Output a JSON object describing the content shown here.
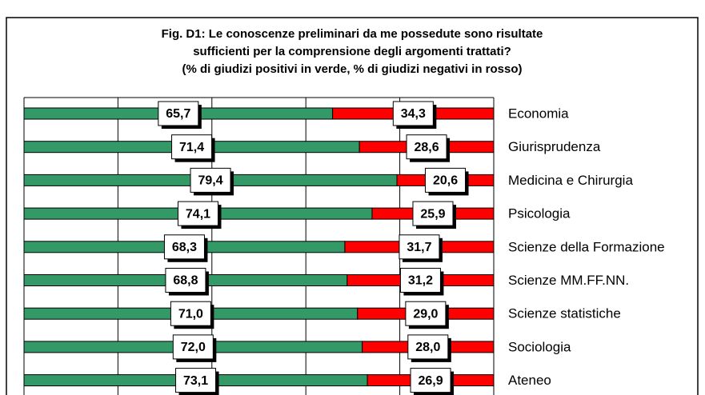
{
  "chart_data": {
    "type": "stacked_barh_100",
    "title": [
      "Fig. D1: Le conoscenze preliminari da me possedute sono risultate",
      "sufficienti per la comprensione degli argomenti trattati?"
    ],
    "subtitle": "(% di giudizi positivi in verde, % di giudizi negativi in rosso)",
    "categories": [
      "Economia",
      "Giurisprudenza",
      "Medicina e Chirurgia",
      "Psicologia",
      "Scienze della Formazione",
      "Scienze MM.FF.NN.",
      "Scienze statistiche",
      "Sociologia",
      "Ateneo"
    ],
    "series": [
      {
        "color": "#339966",
        "values": [
          65.7,
          71.4,
          79.4,
          74.1,
          68.3,
          68.8,
          71.0,
          72.0,
          73.1
        ],
        "value_labels": [
          "65,7",
          "71,4",
          "79,4",
          "74,1",
          "68,3",
          "68,8",
          "71,0",
          "72,0",
          "73,1"
        ]
      },
      {
        "color": "#ff0000",
        "values": [
          34.3,
          28.6,
          20.6,
          25.9,
          31.7,
          31.2,
          29.0,
          28.0,
          26.9
        ],
        "value_labels": [
          "34,3",
          "28,6",
          "20,6",
          "25,9",
          "31,7",
          "31,2",
          "29,0",
          "28,0",
          "26,9"
        ]
      }
    ],
    "xlim": [
      0,
      100
    ],
    "xticks": [
      0,
      20,
      40,
      60,
      80,
      100
    ],
    "grid": true
  }
}
